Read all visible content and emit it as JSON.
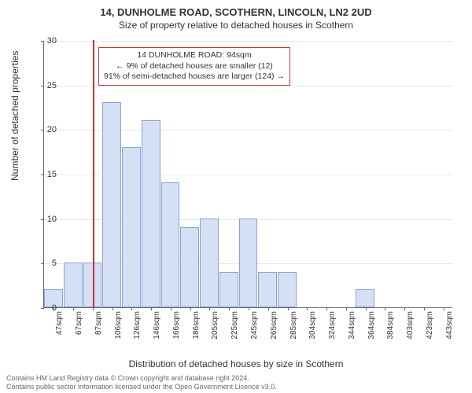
{
  "title": "14, DUNHOLME ROAD, SCOTHERN, LINCOLN, LN2 2UD",
  "subtitle": "Size of property relative to detached houses in Scothern",
  "yaxis_label": "Number of detached properties",
  "xaxis_label": "Distribution of detached houses by size in Scothern",
  "chart": {
    "type": "bar",
    "categories": [
      "47sqm",
      "67sqm",
      "87sqm",
      "106sqm",
      "126sqm",
      "146sqm",
      "166sqm",
      "186sqm",
      "205sqm",
      "225sqm",
      "245sqm",
      "265sqm",
      "285sqm",
      "304sqm",
      "324sqm",
      "344sqm",
      "364sqm",
      "384sqm",
      "403sqm",
      "423sqm",
      "443sqm"
    ],
    "values": [
      2,
      5,
      5,
      23,
      18,
      21,
      14,
      9,
      10,
      4,
      10,
      4,
      4,
      0,
      0,
      0,
      2,
      0,
      0,
      0,
      0
    ],
    "bar_fill": "#d6e0f5",
    "bar_border": "#8aa3d4",
    "ylim": [
      0,
      30
    ],
    "ytick_step": 5,
    "background_color": "#ffffff",
    "grid_color": "#666666",
    "refline_value": 94,
    "refline_color": "#cc3333",
    "xmin": 47,
    "xspan": 396
  },
  "annotation": {
    "line1": "14 DUNHOLME ROAD: 94sqm",
    "line2": "← 9% of detached houses are smaller (12)",
    "line3": "91% of semi-detached houses are larger (124) →",
    "border_color": "#cc3333"
  },
  "footer": {
    "line1": "Contains HM Land Registry data © Crown copyright and database right 2024.",
    "line2": "Contains public sector information licensed under the Open Government Licence v3.0."
  }
}
